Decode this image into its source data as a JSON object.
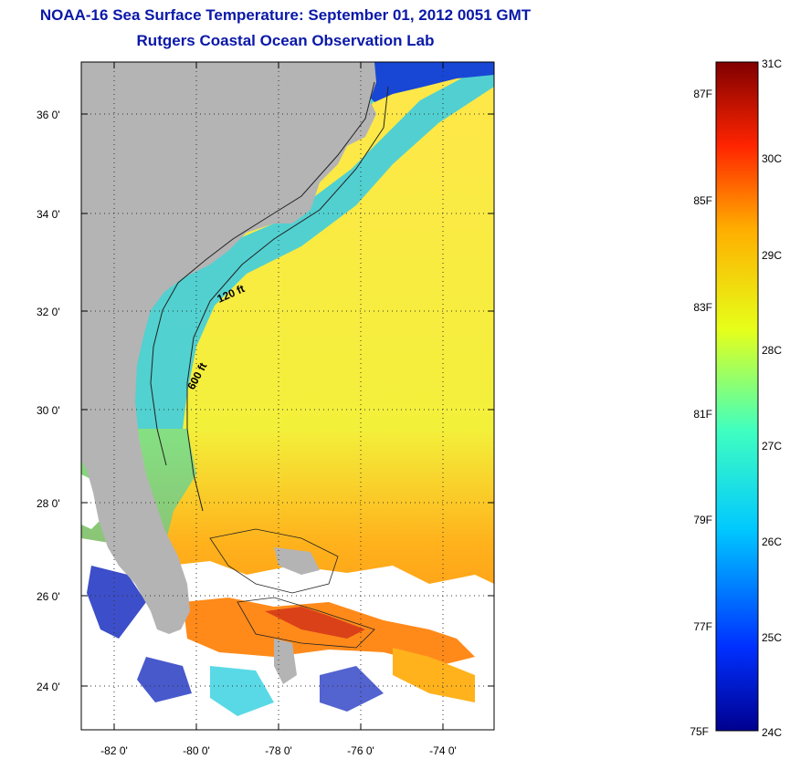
{
  "title": "NOAA-16 Sea Surface Temperature:  September 01, 2012 0051 GMT",
  "subtitle": "Rutgers Coastal Ocean Observation Lab",
  "map": {
    "lat_ticks": [
      "36 0'",
      "34 0'",
      "32 0'",
      "30 0'",
      "28 0'",
      "26 0'",
      "24 0'"
    ],
    "lon_ticks": [
      "-82 0'",
      "-80 0'",
      "-78 0'",
      "-76 0'",
      "-74 0'"
    ],
    "isobath_labels": [
      "120 ft",
      "600 ft"
    ],
    "colors": {
      "land": "#b4b4b4",
      "cloud": "#ffffff"
    }
  },
  "colorbar": {
    "fahrenheit_labels": [
      "87F",
      "85F",
      "83F",
      "81F",
      "79F",
      "77F",
      "75F"
    ],
    "celsius_labels": [
      "31C",
      "30C",
      "29C",
      "28C",
      "27C",
      "26C",
      "25C",
      "24C"
    ],
    "colors": [
      "#00008f",
      "#0030ff",
      "#00c8ff",
      "#40ffbf",
      "#e6ff19",
      "#ffae00",
      "#ff2400",
      "#800000"
    ]
  }
}
